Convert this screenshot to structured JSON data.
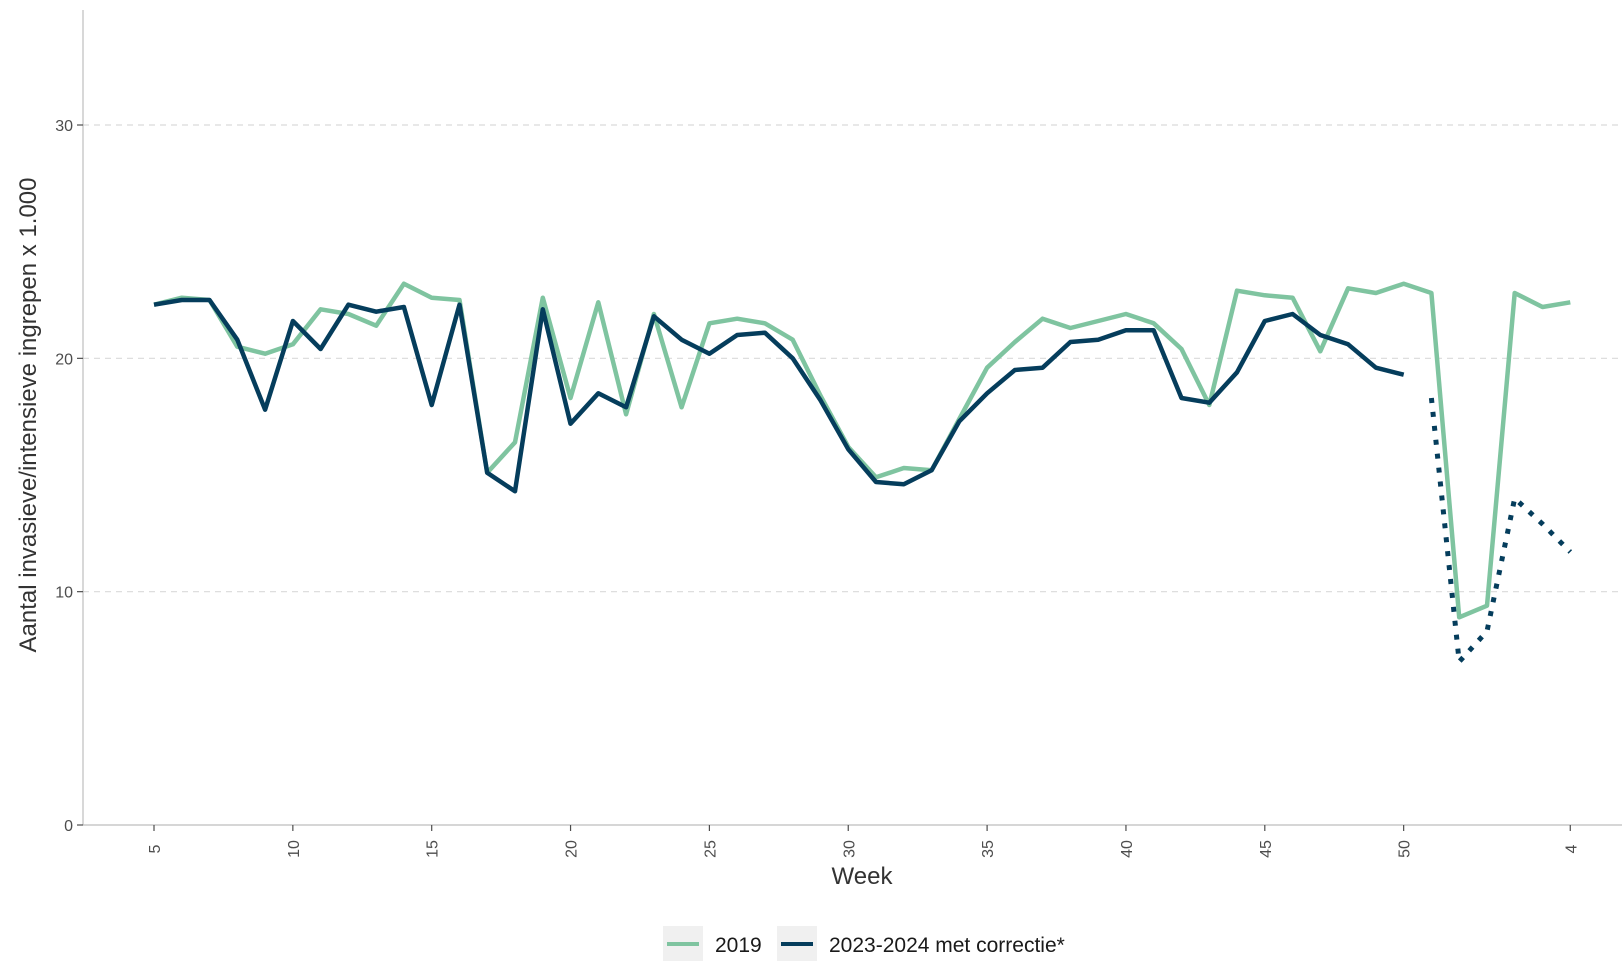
{
  "chart_data": {
    "type": "line",
    "xlabel": "Week",
    "ylabel": "Aantal invasieve/intensieve ingrepen x 1.000",
    "ylim": [
      0,
      35
    ],
    "yticks": [
      0,
      10,
      20,
      30
    ],
    "grid": "horizontal dashed",
    "legend_position": "bottom",
    "x_tick_labels": [
      "5",
      "10",
      "15",
      "20",
      "25",
      "30",
      "35",
      "40",
      "45",
      "50",
      "4"
    ],
    "weeks": [
      5,
      6,
      7,
      8,
      9,
      10,
      11,
      12,
      13,
      14,
      15,
      16,
      17,
      18,
      19,
      20,
      21,
      22,
      23,
      24,
      25,
      26,
      27,
      28,
      29,
      30,
      31,
      32,
      33,
      34,
      35,
      36,
      37,
      38,
      39,
      40,
      41,
      42,
      43,
      44,
      45,
      46,
      47,
      48,
      49,
      50,
      51,
      52,
      1,
      2,
      3,
      4
    ],
    "series": [
      {
        "name": "2019",
        "color": "#7fc4a0",
        "style": "solid",
        "values": [
          22.3,
          22.6,
          22.5,
          20.5,
          20.2,
          20.6,
          22.1,
          21.9,
          21.4,
          23.2,
          22.6,
          22.5,
          15.1,
          16.4,
          22.6,
          18.3,
          22.4,
          17.6,
          21.9,
          17.9,
          21.5,
          21.7,
          21.5,
          20.8,
          18.4,
          16.2,
          14.9,
          15.3,
          15.2,
          17.4,
          19.6,
          20.7,
          21.7,
          21.3,
          21.6,
          21.9,
          21.5,
          20.4,
          18.0,
          22.9,
          22.7,
          22.6,
          20.3,
          23.0,
          22.8,
          23.2,
          22.8,
          8.9,
          9.4,
          22.8,
          22.2,
          22.4
        ]
      },
      {
        "name": "2023-2024 met correctie*",
        "color": "#053d5c",
        "style": "solid",
        "values": [
          22.3,
          22.5,
          22.5,
          20.8,
          17.8,
          21.6,
          20.4,
          22.3,
          22.0,
          22.2,
          18.0,
          22.3,
          15.1,
          14.3,
          22.1,
          17.2,
          18.5,
          17.9,
          21.8,
          20.8,
          20.2,
          21.0,
          21.1,
          20.0,
          18.2,
          16.1,
          14.7,
          14.6,
          15.2,
          17.3,
          18.5,
          19.5,
          19.6,
          20.7,
          20.8,
          21.2,
          21.2,
          18.3,
          18.1,
          19.4,
          21.6,
          21.9,
          21.0,
          20.6,
          19.6,
          19.3,
          null,
          null,
          null,
          null,
          null,
          null
        ]
      },
      {
        "name": "",
        "color": "#053d5c",
        "style": "dotted",
        "values": [
          null,
          null,
          null,
          null,
          null,
          null,
          null,
          null,
          null,
          null,
          null,
          null,
          null,
          null,
          null,
          null,
          null,
          null,
          null,
          null,
          null,
          null,
          null,
          null,
          null,
          null,
          null,
          null,
          null,
          null,
          null,
          null,
          null,
          null,
          null,
          null,
          null,
          null,
          null,
          null,
          null,
          null,
          null,
          null,
          null,
          null,
          18.3,
          7.0,
          8.3,
          14.0,
          12.9,
          11.7
        ]
      }
    ]
  }
}
